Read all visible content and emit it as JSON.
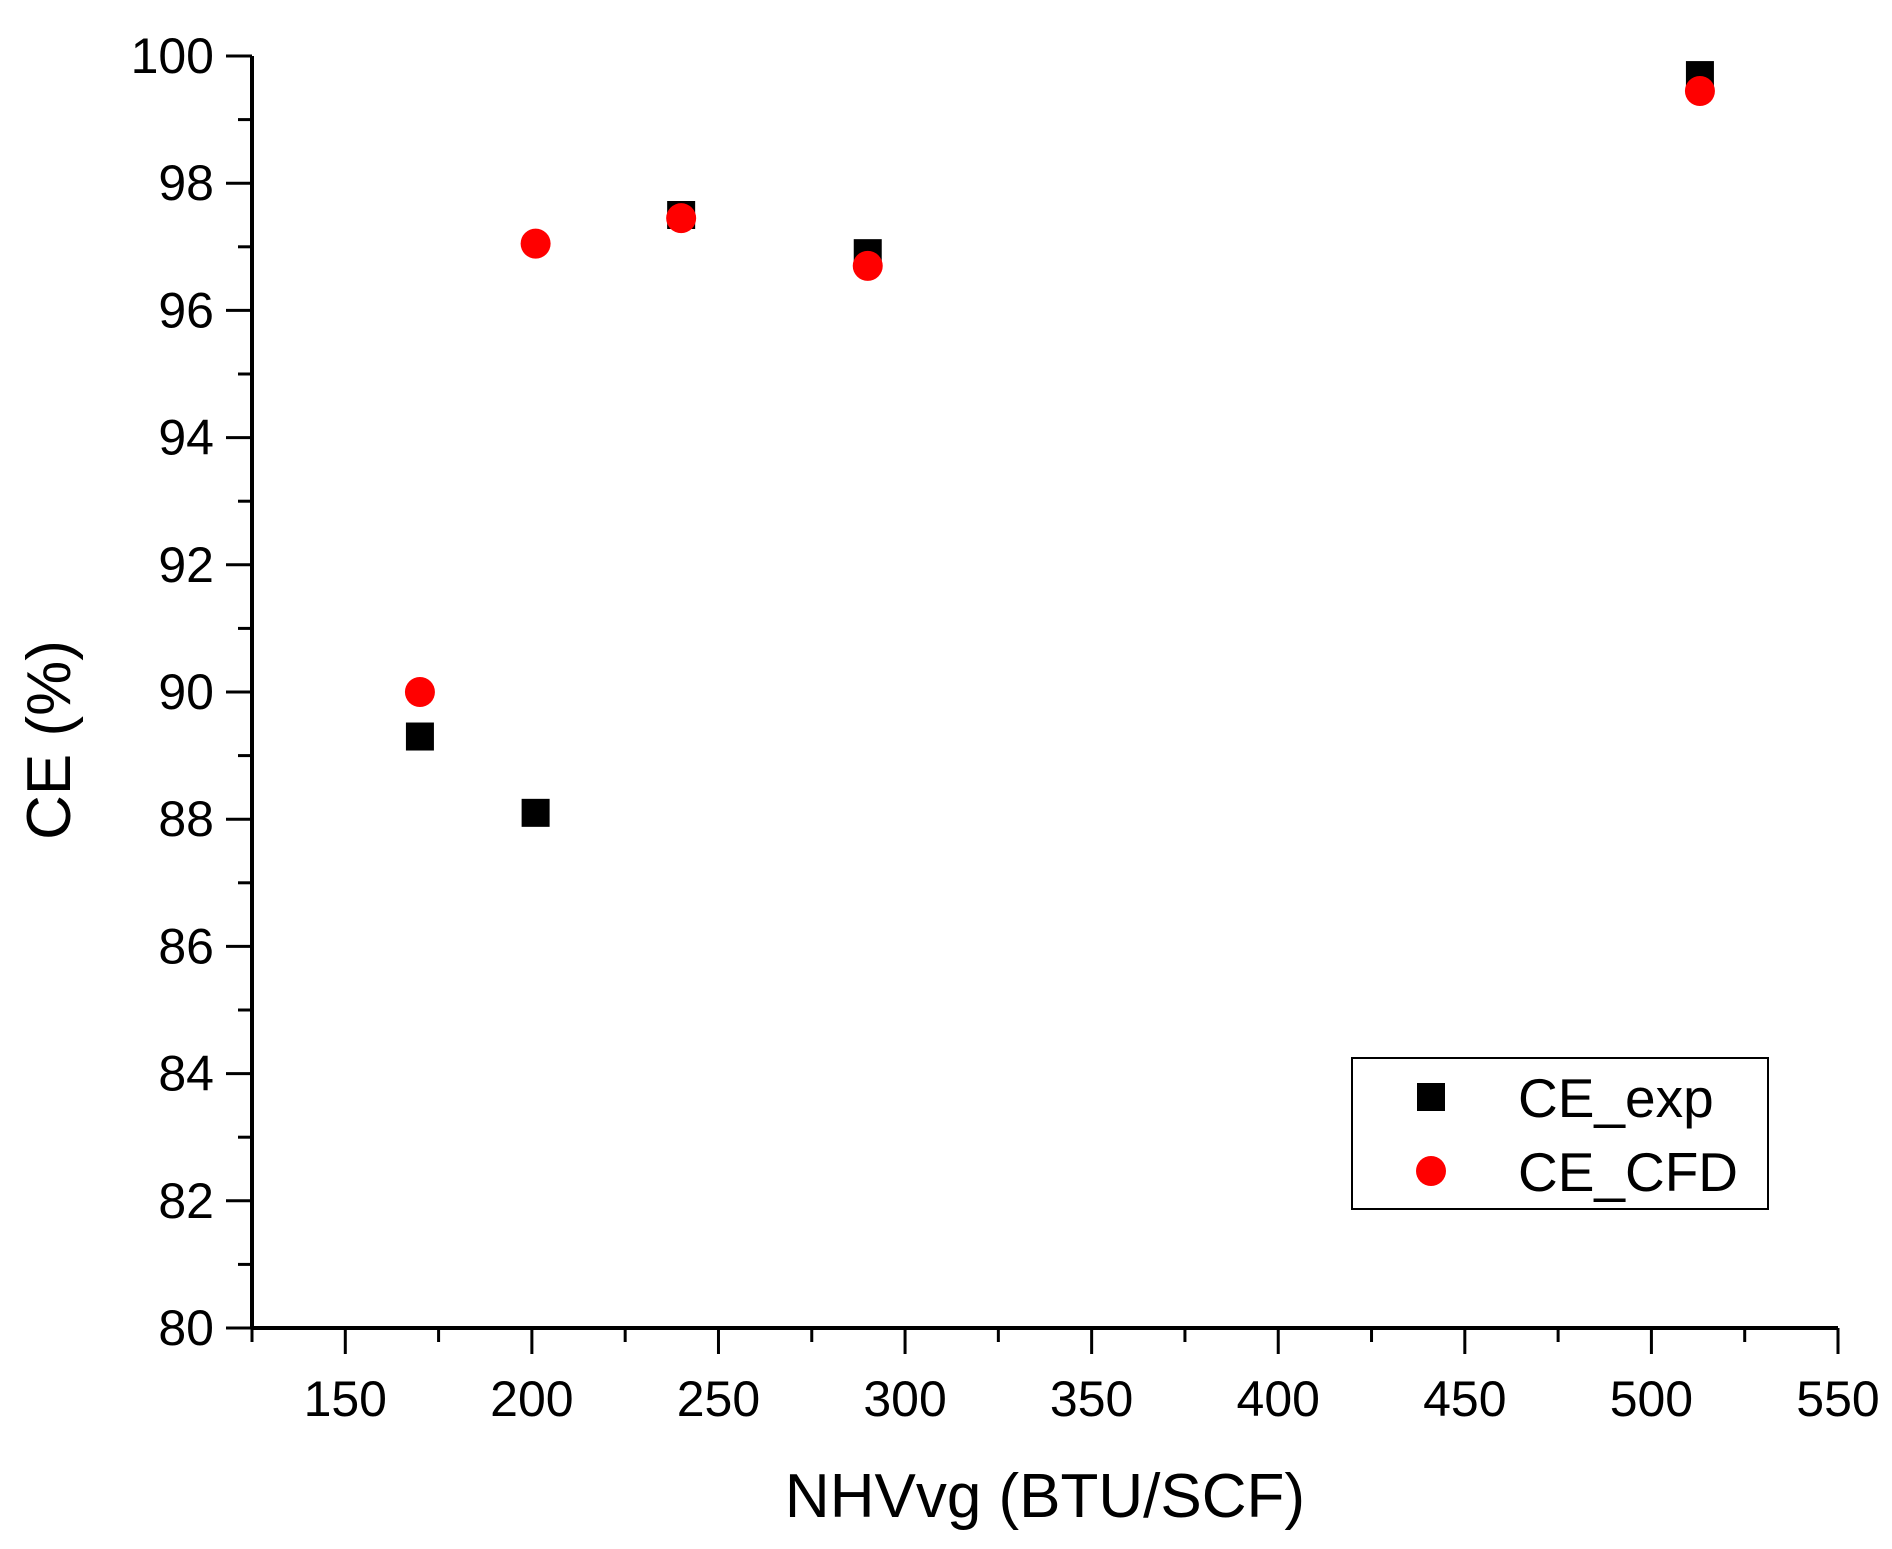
{
  "chart_data": {
    "type": "scatter",
    "title": "",
    "xlabel": "NHVvg (BTU/SCF)",
    "ylabel": "CE (%)",
    "xlim": [
      125,
      550
    ],
    "ylim": [
      80,
      100
    ],
    "x_major_ticks": [
      150,
      200,
      250,
      300,
      350,
      400,
      450,
      500,
      550
    ],
    "x_minor_ticks": [
      125,
      175,
      225,
      275,
      325,
      375,
      425,
      475,
      525
    ],
    "y_major_ticks": [
      80,
      82,
      84,
      86,
      88,
      90,
      92,
      94,
      96,
      98,
      100
    ],
    "y_minor_ticks": [
      81,
      83,
      85,
      87,
      89,
      91,
      93,
      95,
      97,
      99
    ],
    "grid": false,
    "legend_position": "bottom-right",
    "series": [
      {
        "name": "CE_exp",
        "marker": "square",
        "color": "#000000",
        "points": [
          {
            "x": 170,
            "y": 89.3
          },
          {
            "x": 201,
            "y": 88.1
          },
          {
            "x": 240,
            "y": 97.5
          },
          {
            "x": 290,
            "y": 96.9
          },
          {
            "x": 513,
            "y": 99.7
          }
        ]
      },
      {
        "name": "CE_CFD",
        "marker": "circle",
        "color": "#ff0000",
        "points": [
          {
            "x": 170,
            "y": 90.0
          },
          {
            "x": 201,
            "y": 97.05
          },
          {
            "x": 240,
            "y": 97.45
          },
          {
            "x": 290,
            "y": 96.7
          },
          {
            "x": 513,
            "y": 99.45
          }
        ]
      }
    ]
  }
}
